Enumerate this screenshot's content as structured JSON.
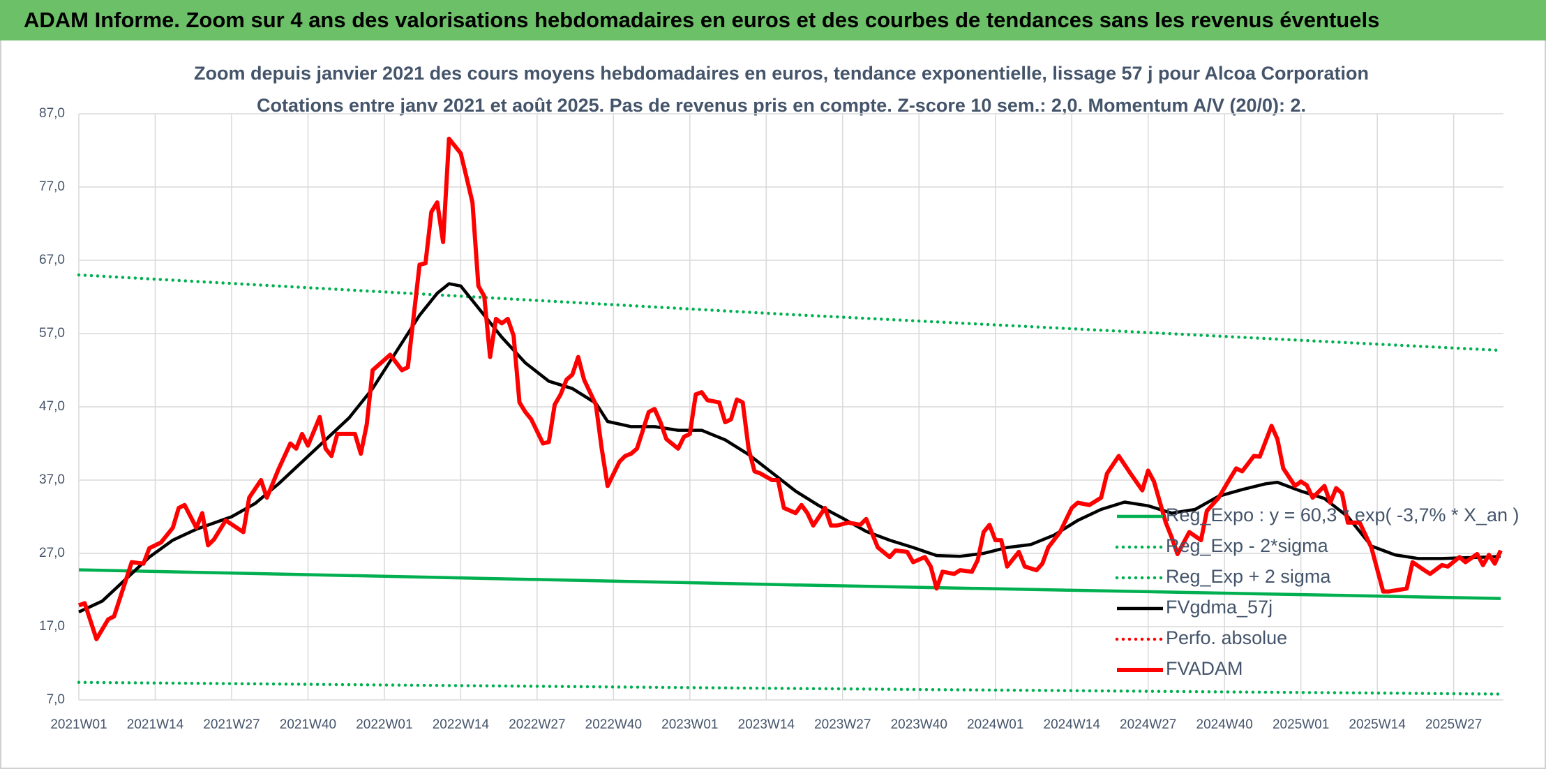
{
  "header": {
    "title": "ADAM Informe. Zoom sur 4 ans des valorisations hebdomadaires en euros et des courbes de tendances sans les revenus éventuels"
  },
  "chart_data": {
    "type": "line",
    "title": "Zoom depuis janvier 2021 des cours moyens hebdomadaires en euros, tendance exponentielle, lissage 57 j pour Alcoa Corporation",
    "subtitle": "Cotations entre janv 2021 et août 2025. Pas de revenus pris en compte. Z-score 10 sem.: 2,0. Momentum A/V (20/0): 2.",
    "xlim": [
      0,
      242
    ],
    "xticks": [
      {
        "value": 0,
        "label": "2021W01"
      },
      {
        "value": 13,
        "label": "2021W14"
      },
      {
        "value": 26,
        "label": "2021W27"
      },
      {
        "value": 39,
        "label": "2021W40"
      },
      {
        "value": 52,
        "label": "2022W01"
      },
      {
        "value": 65,
        "label": "2022W14"
      },
      {
        "value": 78,
        "label": "2022W27"
      },
      {
        "value": 91,
        "label": "2022W40"
      },
      {
        "value": 104,
        "label": "2023W01"
      },
      {
        "value": 117,
        "label": "2023W14"
      },
      {
        "value": 130,
        "label": "2023W27"
      },
      {
        "value": 143,
        "label": "2023W40"
      },
      {
        "value": 156,
        "label": "2024W01"
      },
      {
        "value": 169,
        "label": "2024W14"
      },
      {
        "value": 182,
        "label": "2024W27"
      },
      {
        "value": 195,
        "label": "2024W40"
      },
      {
        "value": 208,
        "label": "2025W01"
      },
      {
        "value": 221,
        "label": "2025W14"
      },
      {
        "value": 234,
        "label": "2025W27"
      }
    ],
    "ylim": [
      7,
      87
    ],
    "yticks": [
      {
        "value": 7,
        "label": "7,0"
      },
      {
        "value": 17,
        "label": "17,0"
      },
      {
        "value": 27,
        "label": "27,0"
      },
      {
        "value": 37,
        "label": "37,0"
      },
      {
        "value": 47,
        "label": "47,0"
      },
      {
        "value": 57,
        "label": "57,0"
      },
      {
        "value": 67,
        "label": "67,0"
      },
      {
        "value": 77,
        "label": "77,0"
      },
      {
        "value": 87,
        "label": "87,0"
      }
    ],
    "grid": true,
    "legend": "right",
    "series": [
      {
        "name": "Reg_Expo : y = 60,3 * exp( -3,7% *  X_an )",
        "color": "#00b050",
        "line_style": "solid",
        "x": [
          0,
          121,
          242
        ],
        "values": [
          24.75,
          22.7,
          20.85
        ]
      },
      {
        "name": "Reg_Exp - 2*sigma",
        "color": "#00b050",
        "line_style": "dotted",
        "x": [
          0,
          121,
          242
        ],
        "values": [
          9.4,
          8.56,
          7.8
        ]
      },
      {
        "name": "Reg_Exp + 2 sigma",
        "color": "#00b050",
        "line_style": "dotted",
        "x": [
          0,
          121,
          242
        ],
        "values": [
          65.0,
          59.6,
          54.7
        ]
      },
      {
        "name": "FVgdma_57j",
        "color": "#000000",
        "line_style": "solid",
        "x": [
          0,
          4,
          8,
          12,
          16,
          20,
          26,
          30,
          34,
          38,
          42,
          46,
          50,
          54,
          58,
          61,
          63,
          65,
          68,
          72,
          76,
          80,
          84,
          88,
          90,
          94,
          98,
          102,
          106,
          110,
          114,
          118,
          122,
          126,
          130,
          134,
          138,
          142,
          146,
          150,
          154,
          158,
          162,
          166,
          170,
          174,
          178,
          182,
          186,
          190,
          194,
          198,
          202,
          204,
          208,
          212,
          216,
          220,
          224,
          228,
          232,
          236,
          240,
          242
        ],
        "values": [
          19.0,
          20.5,
          23.5,
          26.5,
          28.8,
          30.3,
          32.0,
          33.8,
          36.5,
          39.5,
          42.5,
          45.5,
          49.5,
          54.5,
          59.5,
          62.5,
          63.8,
          63.5,
          60.5,
          56.5,
          53.0,
          50.5,
          49.5,
          47.5,
          45.0,
          44.3,
          44.3,
          43.8,
          43.8,
          42.5,
          40.5,
          38.0,
          35.5,
          33.5,
          31.8,
          30.0,
          28.8,
          27.8,
          26.7,
          26.6,
          27.0,
          27.8,
          28.2,
          29.5,
          31.5,
          33.0,
          34.0,
          33.5,
          32.5,
          33.0,
          34.8,
          35.7,
          36.5,
          36.7,
          35.5,
          34.5,
          32.0,
          28.0,
          26.8,
          26.3,
          26.3,
          26.4,
          26.5,
          26.6
        ]
      },
      {
        "name": "Perfo. absolue",
        "color": "#ff0000",
        "line_style": "dotted",
        "x": [],
        "values": []
      },
      {
        "name": "FVADAM",
        "color": "#ff0000",
        "line_style": "thick",
        "x": [
          0,
          1,
          3,
          5,
          6,
          9,
          11,
          12,
          14,
          16,
          17,
          18,
          20,
          21,
          22,
          23,
          25,
          28,
          29,
          31,
          32,
          34,
          36,
          37,
          38,
          39,
          41,
          42,
          43,
          44,
          47,
          48,
          49,
          50,
          53,
          55,
          56,
          58,
          59,
          60,
          61,
          62,
          63,
          65,
          66,
          67,
          68,
          69,
          70,
          71,
          72,
          73,
          74,
          75,
          76,
          77,
          79,
          80,
          81,
          82,
          83,
          84,
          85,
          86,
          88,
          89,
          90,
          92,
          93,
          94,
          95,
          97,
          98,
          99,
          100,
          102,
          103,
          104,
          105,
          106,
          107,
          109,
          110,
          111,
          112,
          113,
          114,
          115,
          116,
          118,
          119,
          120,
          122,
          123,
          124,
          125,
          127,
          128,
          129,
          131,
          133,
          134,
          136,
          138,
          139,
          141,
          142,
          144,
          145,
          146,
          147,
          149,
          150,
          152,
          153,
          154,
          155,
          156,
          157,
          158,
          160,
          161,
          163,
          164,
          165,
          167,
          169,
          170,
          172,
          174,
          175,
          177,
          179,
          181,
          182,
          183,
          185,
          186,
          187,
          189,
          191,
          192,
          194,
          196,
          197,
          198,
          200,
          201,
          203,
          204,
          205,
          207,
          208,
          209,
          210,
          212,
          213,
          214,
          215,
          216,
          218,
          220,
          222,
          223,
          226,
          227,
          229,
          230,
          232,
          233,
          235,
          236,
          238,
          239,
          240,
          241,
          242
        ],
        "values": [
          19.9,
          20.2,
          15.3,
          18.0,
          18.4,
          25.8,
          25.6,
          27.7,
          28.5,
          30.5,
          33.2,
          33.6,
          30.5,
          32.5,
          28.1,
          28.9,
          31.5,
          29.9,
          34.6,
          37.0,
          34.6,
          38.5,
          42.0,
          41.3,
          43.3,
          41.7,
          45.6,
          41.3,
          40.3,
          43.3,
          43.3,
          40.6,
          44.6,
          52.0,
          54.1,
          52.0,
          52.4,
          66.4,
          66.6,
          73.6,
          74.9,
          69.5,
          83.6,
          81.6,
          78.3,
          74.9,
          63.5,
          62.1,
          53.8,
          59.0,
          58.4,
          59.0,
          56.7,
          47.6,
          46.3,
          45.3,
          42.0,
          42.2,
          47.3,
          48.7,
          50.7,
          51.4,
          53.8,
          50.7,
          47.3,
          41.3,
          36.2,
          39.5,
          40.3,
          40.6,
          41.3,
          46.3,
          46.7,
          44.9,
          42.6,
          41.3,
          42.9,
          43.3,
          48.7,
          49.0,
          47.9,
          47.6,
          44.9,
          45.3,
          48.0,
          47.6,
          41.3,
          38.2,
          37.9,
          37.0,
          37.0,
          33.2,
          32.5,
          33.6,
          32.5,
          30.8,
          33.2,
          30.8,
          30.8,
          31.2,
          30.9,
          31.7,
          27.8,
          26.5,
          27.4,
          27.2,
          25.8,
          26.5,
          25.2,
          22.2,
          24.5,
          24.2,
          24.7,
          24.5,
          26.1,
          29.9,
          30.9,
          28.8,
          28.8,
          25.2,
          27.2,
          25.2,
          24.7,
          25.6,
          27.8,
          29.9,
          33.2,
          33.9,
          33.6,
          34.6,
          37.9,
          40.3,
          37.9,
          35.6,
          38.3,
          36.8,
          31.2,
          29.2,
          26.9,
          29.9,
          28.8,
          32.8,
          34.6,
          37.3,
          38.6,
          38.2,
          40.3,
          40.2,
          44.4,
          42.6,
          38.6,
          36.2,
          36.8,
          36.3,
          34.6,
          36.2,
          33.9,
          35.9,
          35.2,
          31.2,
          31.2,
          27.8,
          21.8,
          21.8,
          22.2,
          25.8,
          24.7,
          24.2,
          25.4,
          25.2,
          26.5,
          25.8,
          26.9,
          25.4,
          26.8,
          25.6,
          27.4
        ]
      }
    ]
  }
}
